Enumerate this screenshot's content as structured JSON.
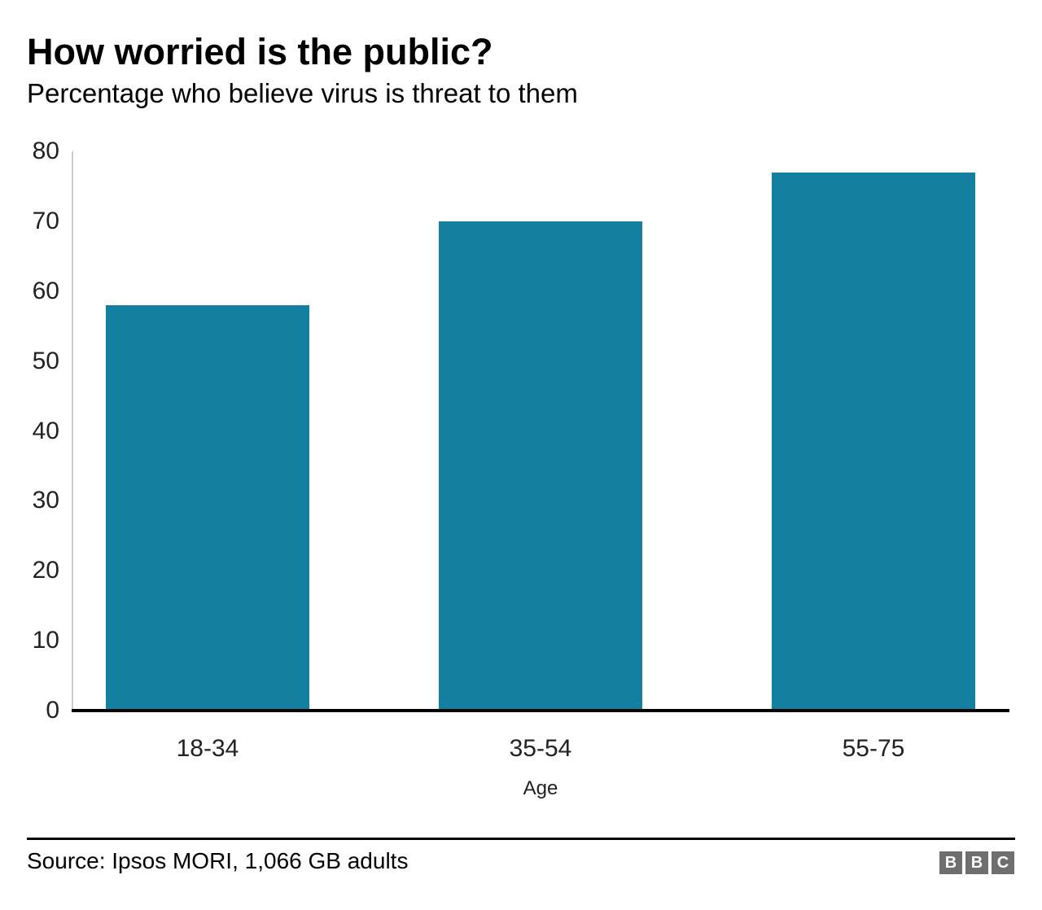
{
  "header": {
    "title": "How worried is the public?",
    "subtitle": "Percentage who believe virus is threat to them"
  },
  "chart_data": {
    "type": "bar",
    "title": "How worried is the public?",
    "subtitle": "Percentage who believe virus is threat to them",
    "categories": [
      "18-34",
      "35-54",
      "55-75"
    ],
    "values": [
      58,
      70,
      77
    ],
    "xlabel": "Age",
    "ylabel": "",
    "ylim": [
      0,
      80
    ],
    "yticks": [
      0,
      10,
      20,
      30,
      40,
      50,
      60,
      70,
      80
    ],
    "grid": false,
    "legend_position": "none",
    "bar_color": "#1380A1"
  },
  "footer": {
    "source": "Source: Ipsos MORI, 1,066 GB adults",
    "logo_letters": [
      "B",
      "B",
      "C"
    ]
  },
  "colors": {
    "bar": "#1380A1",
    "axis_line": "#cccccc",
    "baseline": "#000000",
    "text": "#000000",
    "tick_text": "#222222",
    "logo_bg": "#6e6e6e",
    "logo_text": "#ffffff"
  }
}
